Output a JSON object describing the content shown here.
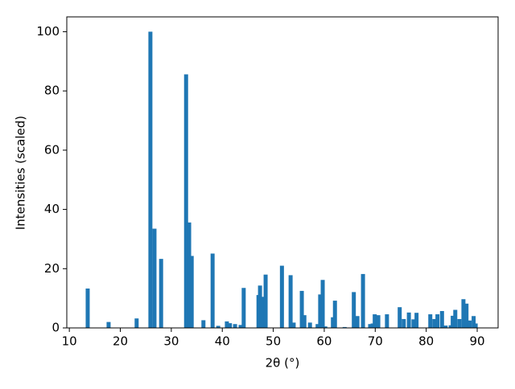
{
  "chart_data": {
    "type": "bar",
    "xlabel": "2θ (°)",
    "ylabel": "Intensities (scaled)",
    "color": "#1f77b4",
    "x": [
      13.6,
      17.7,
      23.2,
      25.9,
      26.7,
      28.0,
      32.9,
      33.5,
      34.0,
      36.3,
      38.1,
      39.2,
      40.9,
      41.5,
      42.5,
      43.6,
      44.2,
      47.1,
      47.4,
      47.9,
      48.5,
      51.7,
      53.4,
      54.0,
      55.6,
      56.1,
      57.2,
      58.7,
      59.2,
      59.7,
      60.2,
      61.7,
      62.1,
      64.0,
      65.8,
      66.5,
      67.6,
      69.0,
      69.5,
      69.9,
      70.6,
      72.3,
      74.8,
      75.6,
      76.6,
      77.5,
      78.1,
      80.8,
      81.6,
      82.2,
      83.1,
      83.8,
      84.8,
      85.2,
      85.7,
      86.5,
      87.3,
      87.9,
      88.5,
      89.3,
      89.7
    ],
    "values": [
      13.3,
      2,
      3.2,
      100,
      33.5,
      23.3,
      85.6,
      35.6,
      24.3,
      2.6,
      25.1,
      0.7,
      2.2,
      1.6,
      1.3,
      1.0,
      13.5,
      11.1,
      14.3,
      10.5,
      18.0,
      21.0,
      17.8,
      1.8,
      12.5,
      4.3,
      1.8,
      1.3,
      11.3,
      16.2,
      0.5,
      3.6,
      9.2,
      0.3,
      12.1,
      4.0,
      18.2,
      1.3,
      1.5,
      4.6,
      4.3,
      4.6,
      7.0,
      3.0,
      5.2,
      2.9,
      5.1,
      4.6,
      3.0,
      4.6,
      5.7,
      0.8,
      0.9,
      4.1,
      6.1,
      3.0,
      9.7,
      8.2,
      2.5,
      4.0,
      1.5
    ],
    "xlim": [
      9.5,
      94.1
    ],
    "ylim": [
      0,
      105
    ],
    "xticks": [
      10,
      20,
      30,
      40,
      50,
      60,
      70,
      80,
      90
    ],
    "yticks": [
      0,
      20,
      40,
      60,
      80,
      100
    ]
  }
}
